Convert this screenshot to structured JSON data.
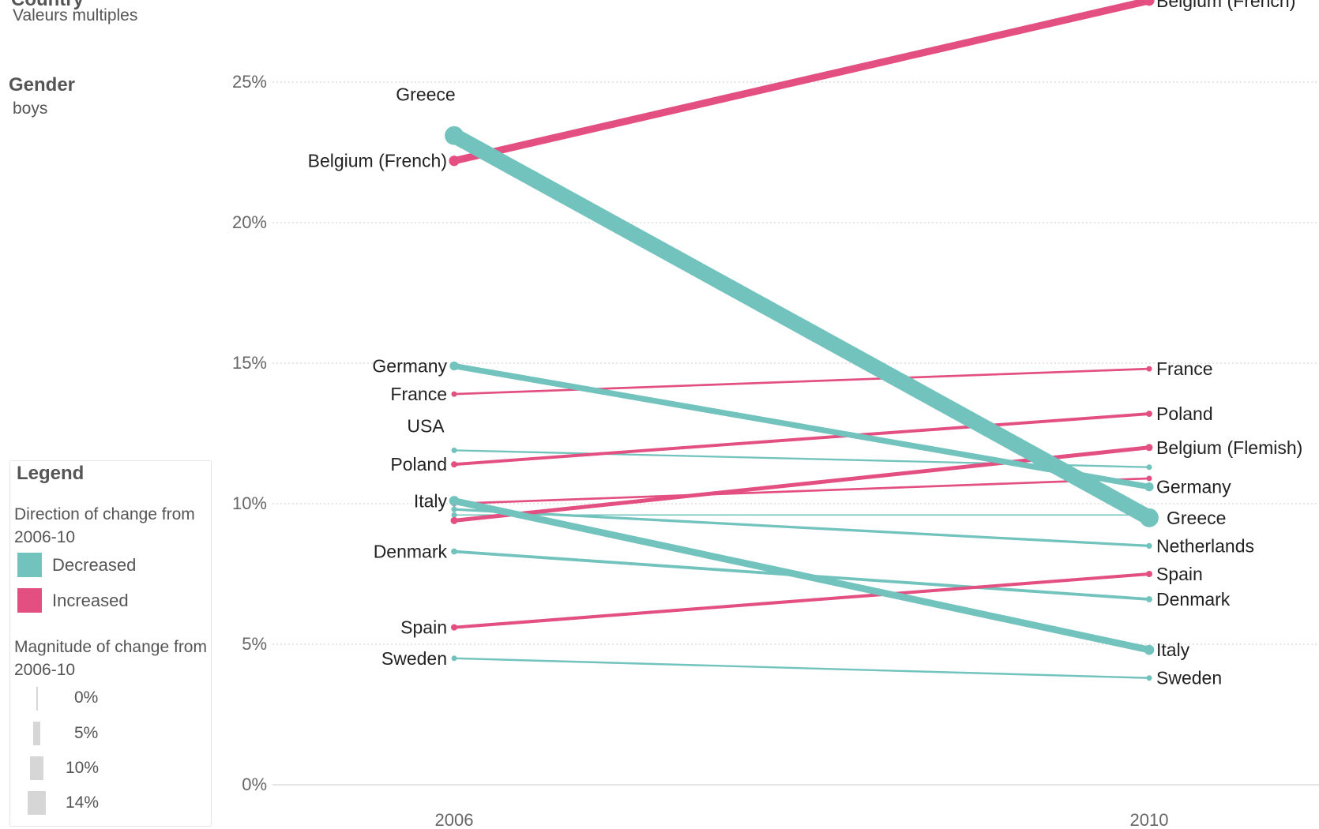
{
  "filters": {
    "country_title": "Country",
    "country_value": "Valeurs multiples",
    "gender_title": "Gender",
    "gender_value": "boys"
  },
  "legend": {
    "title": "Legend",
    "direction_title": "Direction of change from 2006-10",
    "decreased_label": "Decreased",
    "increased_label": "Increased",
    "magnitude_title": "Magnitude of change from 2006-10",
    "magnitude_items": [
      "0%",
      "5%",
      "10%",
      "14%"
    ]
  },
  "colors": {
    "decreased": "#72c2bd",
    "increased": "#e24f80",
    "grid": "#dddddd",
    "axis_text": "#666666"
  },
  "chart_data": {
    "type": "line",
    "title": "",
    "xlabel": "",
    "ylabel": "",
    "x": [
      "2006",
      "2010"
    ],
    "ylim": [
      0,
      28
    ],
    "yticks": [
      "0%",
      "5%",
      "10%",
      "15%",
      "20%",
      "25%"
    ],
    "grid": true,
    "legend_position": "bottom-left",
    "series": [
      {
        "name": "Belgium (French)",
        "values": [
          22.2,
          27.9
        ],
        "direction": "increased",
        "label_2006": "Belgium (French)",
        "label_2010": "Belgium (French)"
      },
      {
        "name": "Greece",
        "values": [
          23.1,
          9.5
        ],
        "direction": "decreased",
        "label_2006": "Greece",
        "label_2010": "Greece"
      },
      {
        "name": "Germany",
        "values": [
          14.9,
          10.6
        ],
        "direction": "decreased",
        "label_2006": "Germany",
        "label_2010": "Germany"
      },
      {
        "name": "France",
        "values": [
          13.9,
          14.8
        ],
        "direction": "increased",
        "label_2006": "France",
        "label_2010": "France"
      },
      {
        "name": "USA",
        "values": [
          11.9,
          11.3
        ],
        "direction": "decreased",
        "label_2006": "USA",
        "label_2010": ""
      },
      {
        "name": "Poland",
        "values": [
          11.4,
          13.2
        ],
        "direction": "increased",
        "label_2006": "Poland",
        "label_2010": "Poland"
      },
      {
        "name": "Italy",
        "values": [
          10.1,
          4.8
        ],
        "direction": "decreased",
        "label_2006": "Italy",
        "label_2010": "Italy"
      },
      {
        "name": "Belgium (Flemish)",
        "values": [
          9.4,
          12.0
        ],
        "direction": "increased",
        "label_2006": "",
        "label_2010": "Belgium (Flemish)"
      },
      {
        "name": "Netherlands",
        "values": [
          9.8,
          8.5
        ],
        "direction": "decreased",
        "label_2006": "",
        "label_2010": "Netherlands"
      },
      {
        "name": "",
        "values": [
          10.0,
          10.9
        ],
        "direction": "increased",
        "label_2006": "",
        "label_2010": ""
      },
      {
        "name": "",
        "values": [
          9.6,
          9.6
        ],
        "direction": "decreased",
        "label_2006": "",
        "label_2010": ""
      },
      {
        "name": "Denmark",
        "values": [
          8.3,
          6.6
        ],
        "direction": "decreased",
        "label_2006": "Denmark",
        "label_2010": "Denmark"
      },
      {
        "name": "Spain",
        "values": [
          5.6,
          7.5
        ],
        "direction": "increased",
        "label_2006": "Spain",
        "label_2010": "Spain"
      },
      {
        "name": "Sweden",
        "values": [
          4.5,
          3.8
        ],
        "direction": "decreased",
        "label_2006": "Sweden",
        "label_2010": "Sweden"
      }
    ]
  }
}
